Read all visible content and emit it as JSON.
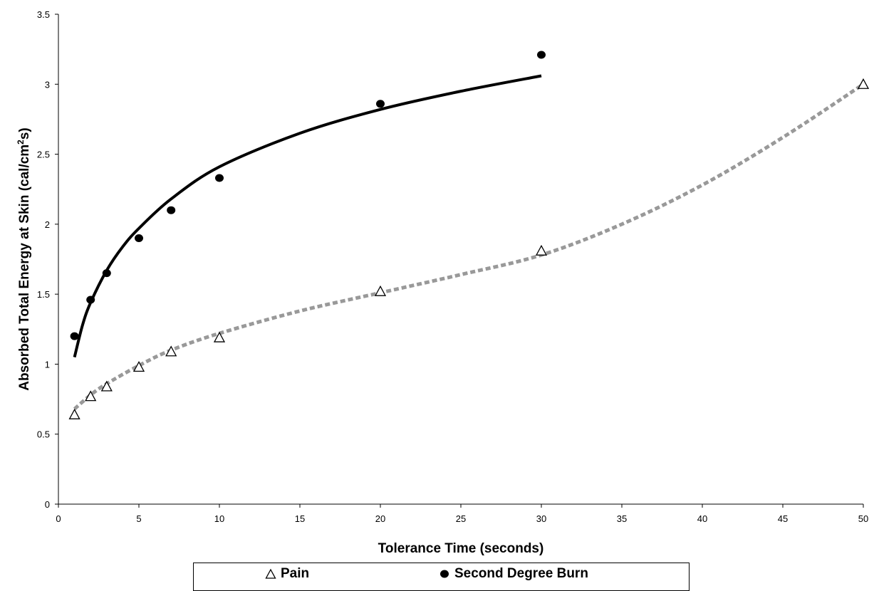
{
  "chart_data": {
    "type": "scatter",
    "xlabel": "Tolerance Time (seconds)",
    "ylabel_main": "Absorbed Total Energy at Skin (cal/cm",
    "ylabel_sup": "2",
    "ylabel_end": "s)",
    "xlim": [
      0,
      50
    ],
    "ylim": [
      0,
      3.5
    ],
    "x_ticks": [
      "0",
      "5",
      "10",
      "15",
      "20",
      "25",
      "30",
      "35",
      "40",
      "45",
      "50"
    ],
    "y_ticks": [
      "0",
      "0.5",
      "1",
      "1.5",
      "2",
      "2.5",
      "3",
      "3.5"
    ],
    "grid": false,
    "legend_position": "bottom",
    "series": [
      {
        "name": "Pain",
        "marker": "triangle-open",
        "color": "#000000",
        "x": [
          1,
          2,
          3,
          5,
          7,
          10,
          20,
          30,
          50
        ],
        "y": [
          0.64,
          0.77,
          0.84,
          0.98,
          1.09,
          1.19,
          1.52,
          1.81,
          3.0
        ],
        "trendline": {
          "style": "dotted",
          "color": "#999999",
          "x": [
            1,
            2,
            3,
            5,
            7,
            10,
            15,
            20,
            25,
            30,
            35,
            40,
            45,
            50
          ],
          "y": [
            0.68,
            0.78,
            0.86,
            0.99,
            1.1,
            1.22,
            1.38,
            1.51,
            1.64,
            1.78,
            2.0,
            2.28,
            2.62,
            3.0
          ]
        }
      },
      {
        "name": "Second Degree Burn",
        "marker": "circle-filled",
        "color": "#000000",
        "x": [
          1,
          2,
          3,
          5,
          7,
          10,
          20,
          30
        ],
        "y": [
          1.2,
          1.46,
          1.65,
          1.9,
          2.1,
          2.33,
          2.86,
          3.21
        ],
        "trendline": {
          "style": "solid",
          "color": "#000000",
          "x": [
            1,
            1.5,
            2,
            3,
            4,
            5,
            7,
            10,
            15,
            20,
            25,
            30
          ],
          "y": [
            1.05,
            1.28,
            1.44,
            1.67,
            1.84,
            1.97,
            2.18,
            2.41,
            2.65,
            2.82,
            2.95,
            3.06
          ]
        }
      }
    ]
  }
}
